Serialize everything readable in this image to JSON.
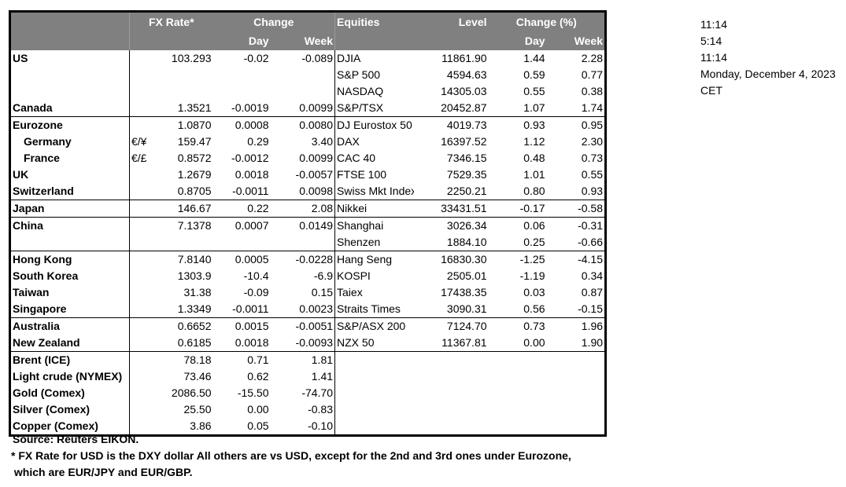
{
  "header": {
    "fx_rate": "FX Rate*",
    "change": "Change",
    "day": "Day",
    "week": "Week",
    "equities": "Equities",
    "level": "Level",
    "change_pct": "Change (%)",
    "eq_day": "Day",
    "eq_week": "Week"
  },
  "rows": [
    {
      "name": "US",
      "sym": "",
      "fx": "103.293",
      "day": "-0.02",
      "week": "-0.089",
      "eq": "DJIA",
      "level": "11861.90",
      "eday": "1.44",
      "eweek": "2.28"
    },
    {
      "name": "",
      "sym": "",
      "fx": "",
      "day": "",
      "week": "",
      "eq": "S&P 500",
      "level": "4594.63",
      "eday": "0.59",
      "eweek": "0.77"
    },
    {
      "name": "",
      "sym": "",
      "fx": "",
      "day": "",
      "week": "",
      "eq": "NASDAQ",
      "level": "14305.03",
      "eday": "0.55",
      "eweek": "0.38"
    },
    {
      "name": "Canada",
      "sym": "",
      "fx": "1.3521",
      "day": "-0.0019",
      "week": "0.0099",
      "eq": "S&P/TSX",
      "level": "20452.87",
      "eday": "1.07",
      "eweek": "1.74",
      "sep": true
    },
    {
      "name": "Eurozone",
      "sym": "",
      "fx": "1.0870",
      "day": "0.0008",
      "week": "0.0080",
      "eq": "DJ Eurostox 50",
      "level": "4019.73",
      "eday": "0.93",
      "eweek": "0.95"
    },
    {
      "name": "Germany",
      "indent": true,
      "sym": "€/¥",
      "fx": "159.47",
      "day": "0.29",
      "week": "3.40",
      "eq": "DAX",
      "level": "16397.52",
      "eday": "1.12",
      "eweek": "2.30"
    },
    {
      "name": "France",
      "indent": true,
      "sym": "€/£",
      "fx": "0.8572",
      "day": "-0.0012",
      "week": "0.0099",
      "eq": "CAC 40",
      "level": "7346.15",
      "eday": "0.48",
      "eweek": "0.73"
    },
    {
      "name": "UK",
      "sym": "",
      "fx": "1.2679",
      "day": "0.0018",
      "week": "-0.0057",
      "eq": "FTSE 100",
      "level": "7529.35",
      "eday": "1.01",
      "eweek": "0.55"
    },
    {
      "name": "Switzerland",
      "sym": "",
      "fx": "0.8705",
      "day": "-0.0011",
      "week": "0.0098",
      "eq": "Swiss Mkt Index",
      "level": "2250.21",
      "eday": "0.80",
      "eweek": "0.93",
      "sep": true
    },
    {
      "name": "Japan",
      "sym": "",
      "fx": "146.67",
      "day": "0.22",
      "week": "2.08",
      "eq": "Nikkei",
      "level": "33431.51",
      "eday": "-0.17",
      "eweek": "-0.58",
      "sep": true
    },
    {
      "name": "China",
      "sym": "",
      "fx": "7.1378",
      "day": "0.0007",
      "week": "0.0149",
      "eq": "Shanghai",
      "level": "3026.34",
      "eday": "0.06",
      "eweek": "-0.31"
    },
    {
      "name": "",
      "sym": "",
      "fx": "",
      "day": "",
      "week": "",
      "eq": "Shenzen",
      "level": "1884.10",
      "eday": "0.25",
      "eweek": "-0.66",
      "sep": true
    },
    {
      "name": "Hong Kong",
      "sym": "",
      "fx": "7.8140",
      "day": "0.0005",
      "week": "-0.0228",
      "eq": "Hang Seng",
      "level": "16830.30",
      "eday": "-1.25",
      "eweek": "-4.15"
    },
    {
      "name": "South Korea",
      "sym": "",
      "fx": "1303.9",
      "day": "-10.4",
      "week": "-6.9",
      "eq": "KOSPI",
      "level": "2505.01",
      "eday": "-1.19",
      "eweek": "0.34"
    },
    {
      "name": "Taiwan",
      "sym": "",
      "fx": "31.38",
      "day": "-0.09",
      "week": "0.15",
      "eq": "Taiex",
      "level": "17438.35",
      "eday": "0.03",
      "eweek": "0.87"
    },
    {
      "name": "Singapore",
      "sym": "",
      "fx": "1.3349",
      "day": "-0.0011",
      "week": "0.0023",
      "eq": "Straits Times",
      "level": "3090.31",
      "eday": "0.56",
      "eweek": "-0.15",
      "sep": true
    },
    {
      "name": "Australia",
      "sym": "",
      "fx": "0.6652",
      "day": "0.0015",
      "week": "-0.0051",
      "eq": "S&P/ASX  200",
      "level": "7124.70",
      "eday": "0.73",
      "eweek": "1.96"
    },
    {
      "name": "New Zealand",
      "sym": "",
      "fx": "0.6185",
      "day": "0.0018",
      "week": "-0.0093",
      "eq": "NZX 50",
      "level": "11367.81",
      "eday": "0.00",
      "eweek": "1.90",
      "sep": true
    },
    {
      "name": "Brent (ICE)",
      "sym": "",
      "fx": "78.18",
      "day": "0.71",
      "week": "1.81",
      "eq": "",
      "level": "",
      "eday": "",
      "eweek": ""
    },
    {
      "name": "Light crude (NYMEX)",
      "sym": "",
      "fx": "73.46",
      "day": "0.62",
      "week": "1.41",
      "eq": "",
      "level": "",
      "eday": "",
      "eweek": ""
    },
    {
      "name": "Gold (Comex)",
      "sym": "",
      "fx": "2086.50",
      "day": "-15.50",
      "week": "-74.70",
      "eq": "",
      "level": "",
      "eday": "",
      "eweek": ""
    },
    {
      "name": "Silver (Comex)",
      "sym": "",
      "fx": "25.50",
      "day": "0.00",
      "week": "-0.83",
      "eq": "",
      "level": "",
      "eday": "",
      "eweek": ""
    },
    {
      "name": "Copper (Comex)",
      "sym": "",
      "fx": "3.86",
      "day": "0.05",
      "week": "-0.10",
      "eq": "",
      "level": "",
      "eday": "",
      "eweek": ""
    }
  ],
  "side": [
    "11:14",
    "5:14",
    "11:14",
    "Monday, December 4, 2023",
    "CET"
  ],
  "footer": {
    "source": "Source:  Reuters EIKON.",
    "note1": "* FX Rate for USD is the DXY dollar  All others are vs USD, except for the 2nd and 3rd ones under Eurozone,",
    "note2": " which are EUR/JPY and EUR/GBP."
  }
}
